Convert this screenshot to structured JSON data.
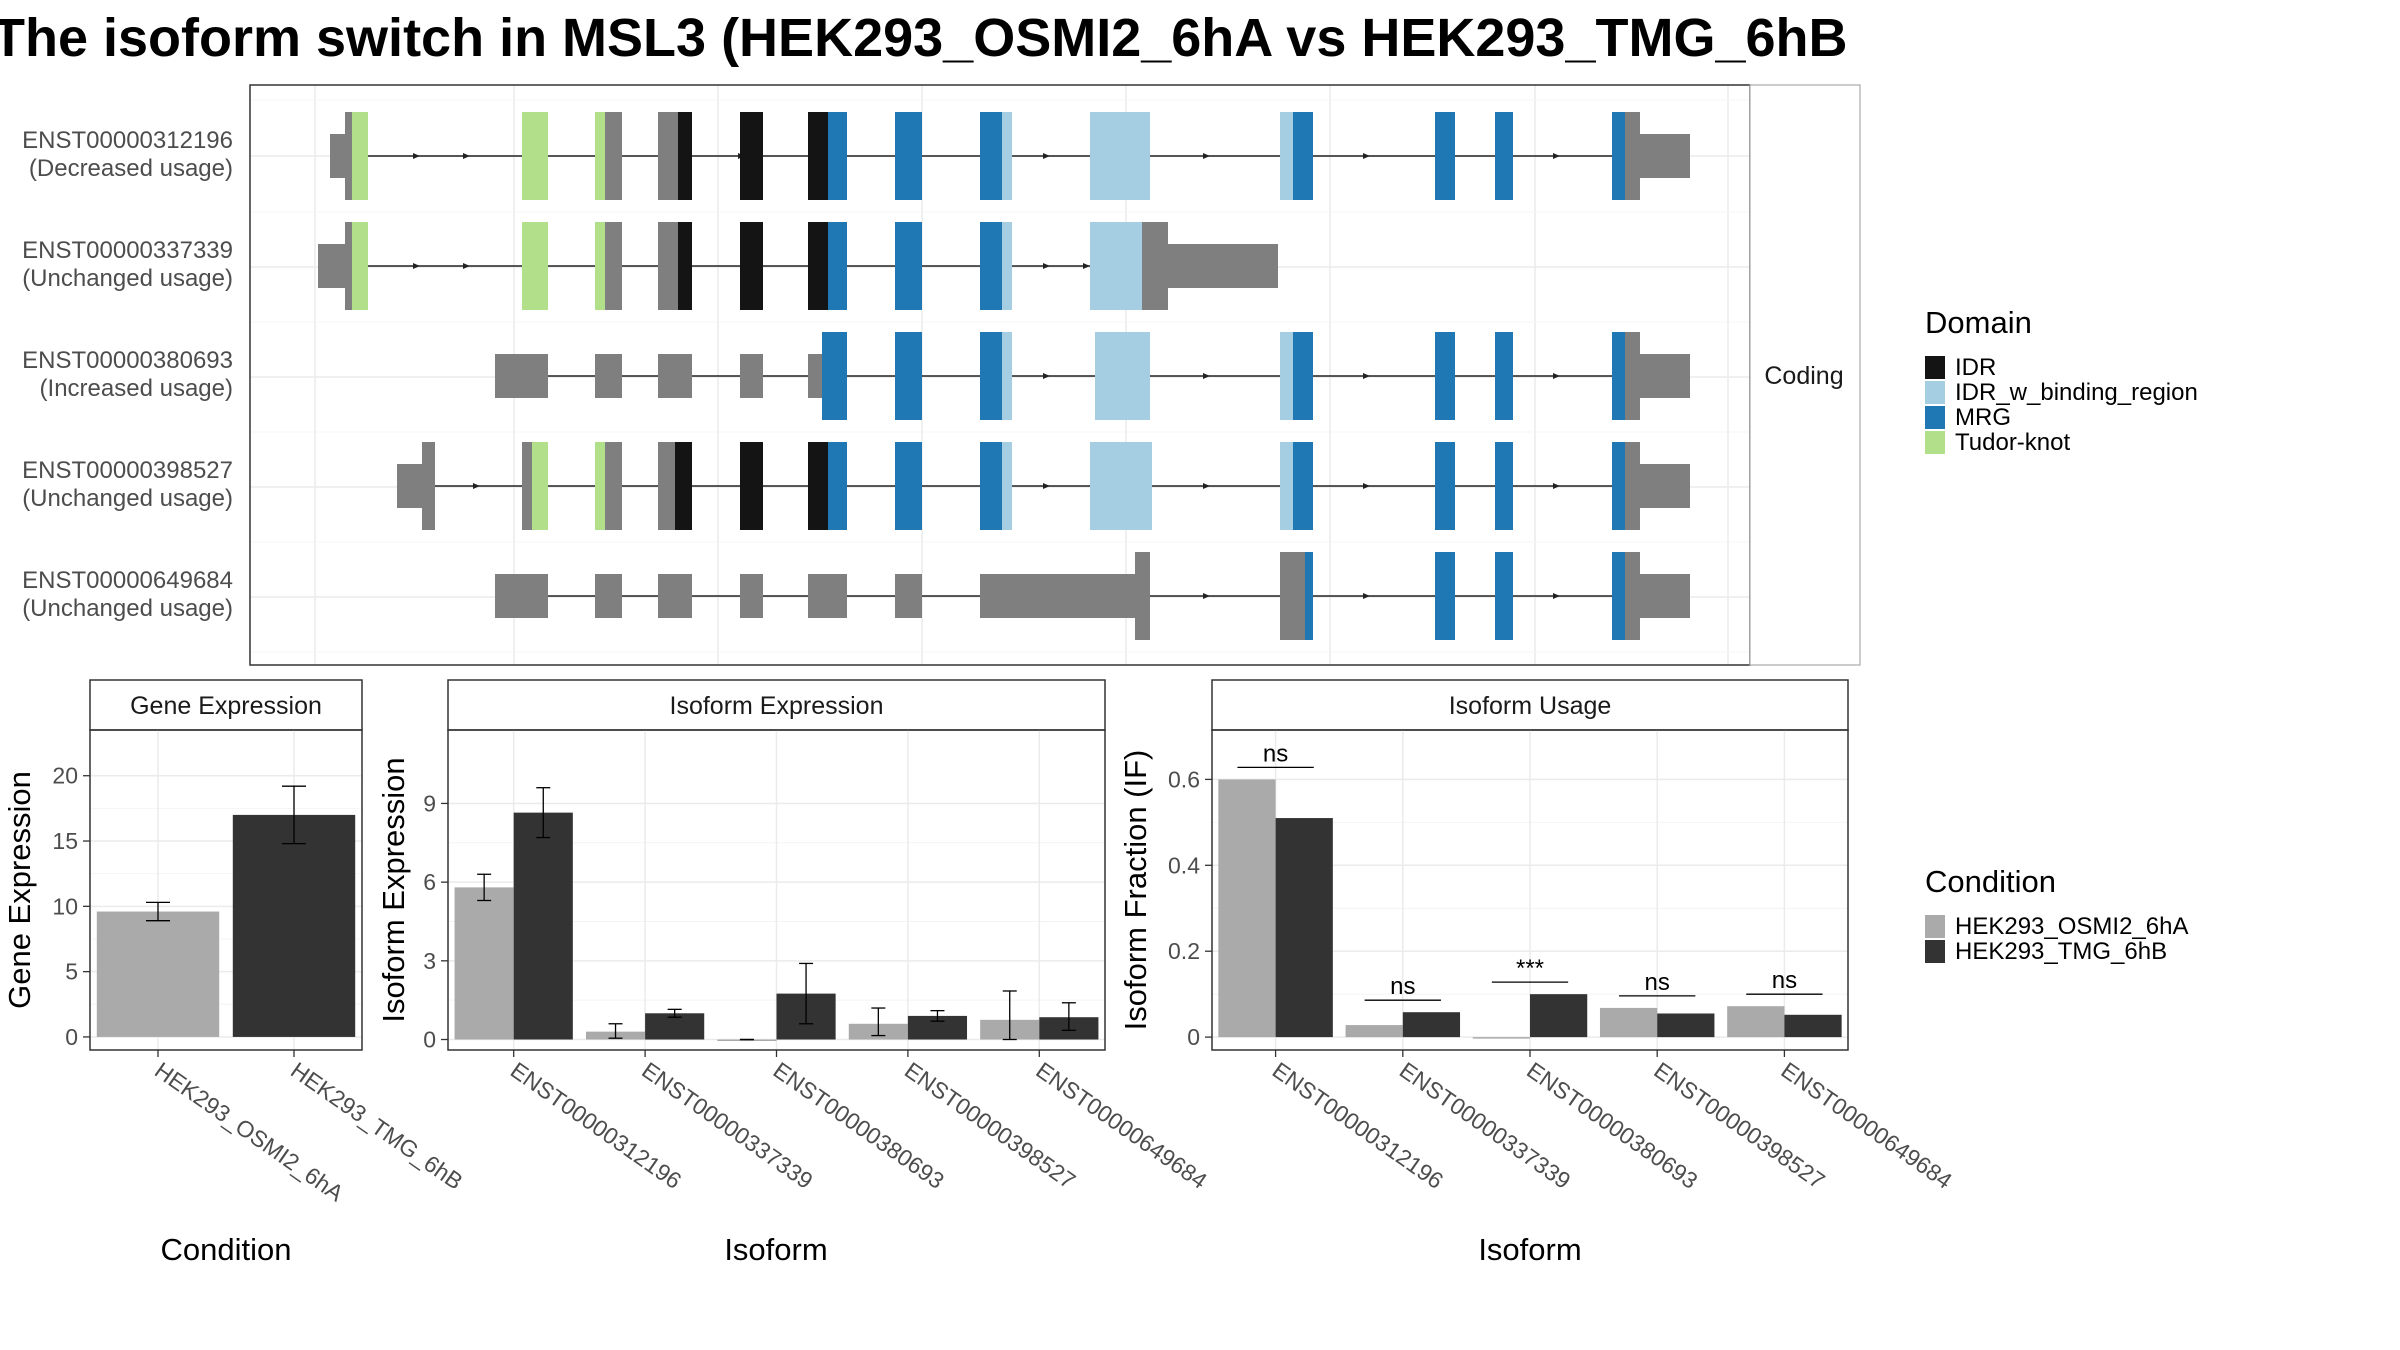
{
  "title": "The isoform switch in MSL3 (HEK293_OSMI2_6hA vs HEK293_TMG_6hB",
  "colors": {
    "exon": "#7f7f7f",
    "IDR": "#141414",
    "IDR_w_binding_region": "#a6cee3",
    "MRG": "#1f78b4",
    "Tudor-knot": "#b2df8a",
    "cond1": "#aaaaaa",
    "cond2": "#333333",
    "grid": "#ebebeb",
    "strip": "#ffffff",
    "panel_border": "#333333"
  },
  "structure": {
    "facet_label": "Coding",
    "isoforms": [
      {
        "id": "ENST00000312196",
        "usage": "(Decreased usage)"
      },
      {
        "id": "ENST00000337339",
        "usage": "(Unchanged usage)"
      },
      {
        "id": "ENST00000380693",
        "usage": "(Increased usage)"
      },
      {
        "id": "ENST00000398527",
        "usage": "(Unchanged usage)"
      },
      {
        "id": "ENST00000649684",
        "usage": "(Unchanged usage)"
      }
    ]
  },
  "legend_domain": {
    "title": "Domain",
    "items": [
      {
        "label": "IDR",
        "color_key": "IDR"
      },
      {
        "label": "IDR_w_binding_region",
        "color_key": "IDR_w_binding_region"
      },
      {
        "label": "MRG",
        "color_key": "MRG"
      },
      {
        "label": "Tudor-knot",
        "color_key": "Tudor-knot"
      }
    ]
  },
  "legend_condition": {
    "title": "Condition",
    "items": [
      {
        "label": "HEK293_OSMI2_6hA",
        "color_key": "cond1"
      },
      {
        "label": "HEK293_TMG_6hB",
        "color_key": "cond2"
      }
    ]
  },
  "chart_data": [
    {
      "type": "bar",
      "title": "Gene Expression",
      "xlabel": "Condition",
      "ylabel": "Gene Expression",
      "ylim": [
        -1,
        23.5
      ],
      "yticks": [
        0,
        5,
        10,
        15,
        20
      ],
      "categories": [
        "HEK293_OSMI2_6hA",
        "HEK293_TMG_6hB"
      ],
      "values": [
        9.6,
        17.0
      ],
      "errors": [
        [
          8.9,
          10.3
        ],
        [
          14.8,
          19.2
        ]
      ]
    },
    {
      "type": "bar",
      "title": "Isoform Expression",
      "xlabel": "Isoform",
      "ylabel": "Isoform Expression",
      "ylim": [
        -0.4,
        11.8
      ],
      "yticks": [
        0,
        3,
        6,
        9
      ],
      "categories": [
        "ENST00000312196",
        "ENST00000337339",
        "ENST00000380693",
        "ENST00000398527",
        "ENST00000649684"
      ],
      "series": [
        {
          "name": "HEK293_OSMI2_6hA",
          "values": [
            5.8,
            0.3,
            0.0,
            0.6,
            0.75
          ],
          "errors": [
            [
              5.3,
              6.3
            ],
            [
              0.05,
              0.6
            ],
            [
              0.0,
              0.0
            ],
            [
              0.15,
              1.2
            ],
            [
              0.0,
              1.85
            ]
          ]
        },
        {
          "name": "HEK293_TMG_6hB",
          "values": [
            8.65,
            1.0,
            1.75,
            0.9,
            0.85
          ],
          "errors": [
            [
              7.7,
              9.6
            ],
            [
              0.85,
              1.15
            ],
            [
              0.6,
              2.9
            ],
            [
              0.7,
              1.1
            ],
            [
              0.35,
              1.4
            ]
          ]
        }
      ]
    },
    {
      "type": "bar",
      "title": "Isoform Usage",
      "xlabel": "Isoform",
      "ylabel": "Isoform Fraction (IF)",
      "ylim": [
        -0.03,
        0.715
      ],
      "yticks": [
        0.0,
        0.2,
        0.4,
        0.6
      ],
      "categories": [
        "ENST00000312196",
        "ENST00000337339",
        "ENST00000380693",
        "ENST00000398527",
        "ENST00000649684"
      ],
      "series": [
        {
          "name": "HEK293_OSMI2_6hA",
          "values": [
            0.6,
            0.028,
            0.0,
            0.068,
            0.072
          ]
        },
        {
          "name": "HEK293_TMG_6hB",
          "values": [
            0.51,
            0.058,
            0.1,
            0.055,
            0.052
          ]
        }
      ],
      "significance": [
        "ns",
        "ns",
        "***",
        "ns",
        "ns"
      ]
    }
  ]
}
